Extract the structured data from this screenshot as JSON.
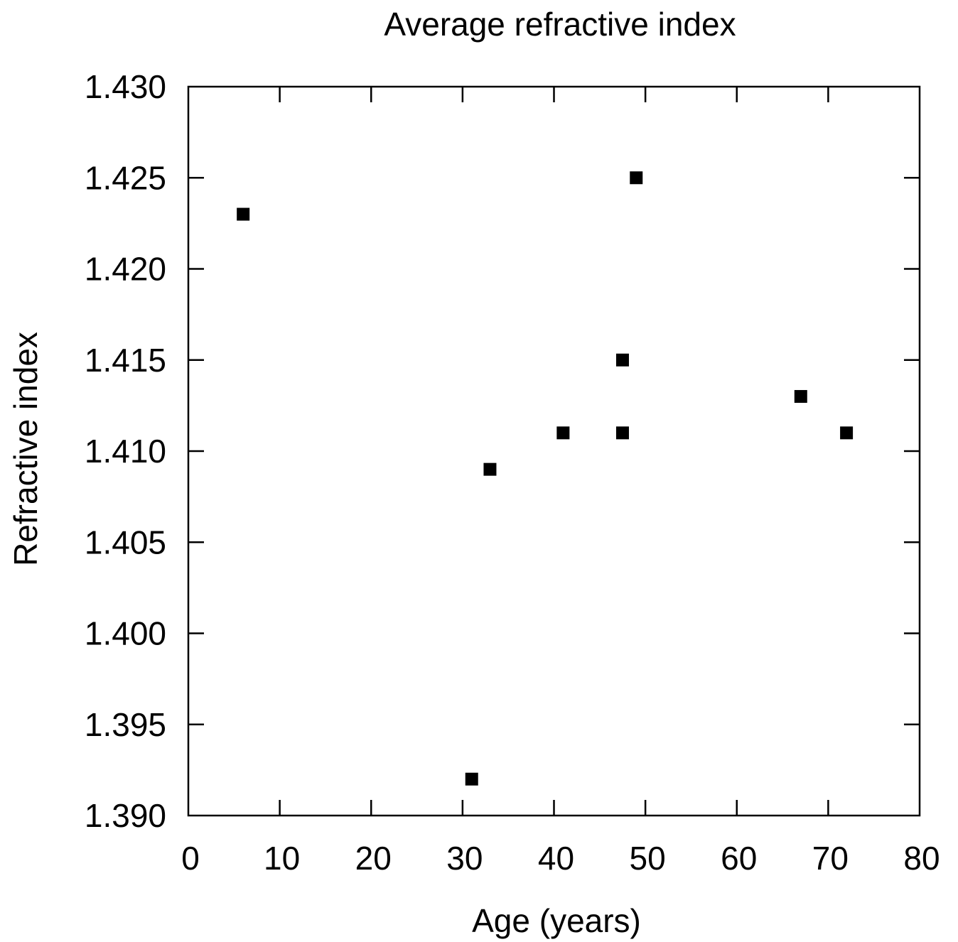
{
  "chart_data": {
    "type": "scatter",
    "title": "Average refractive index",
    "xlabel": "Age (years)",
    "ylabel": "Refractive index",
    "xlim": [
      0,
      80
    ],
    "ylim": [
      1.39,
      1.43
    ],
    "x_ticks": [
      0,
      10,
      20,
      30,
      40,
      50,
      60,
      70,
      80
    ],
    "y_ticks": [
      1.39,
      1.395,
      1.4,
      1.405,
      1.41,
      1.415,
      1.42,
      1.425,
      1.43
    ],
    "x_tick_labels": [
      "0",
      "10",
      "20",
      "30",
      "40",
      "50",
      "60",
      "70",
      "80"
    ],
    "y_tick_labels": [
      "1.390",
      "1.395",
      "1.400",
      "1.405",
      "1.410",
      "1.415",
      "1.420",
      "1.425",
      "1.430"
    ],
    "grid": false,
    "legend": "none",
    "marker": "square",
    "marker_color": "#000000",
    "points": [
      {
        "x": 6,
        "y": 1.423
      },
      {
        "x": 31,
        "y": 1.392
      },
      {
        "x": 33,
        "y": 1.409
      },
      {
        "x": 41,
        "y": 1.411
      },
      {
        "x": 47.5,
        "y": 1.415
      },
      {
        "x": 47.5,
        "y": 1.411
      },
      {
        "x": 49,
        "y": 1.425
      },
      {
        "x": 67,
        "y": 1.413
      },
      {
        "x": 72,
        "y": 1.411
      }
    ]
  }
}
